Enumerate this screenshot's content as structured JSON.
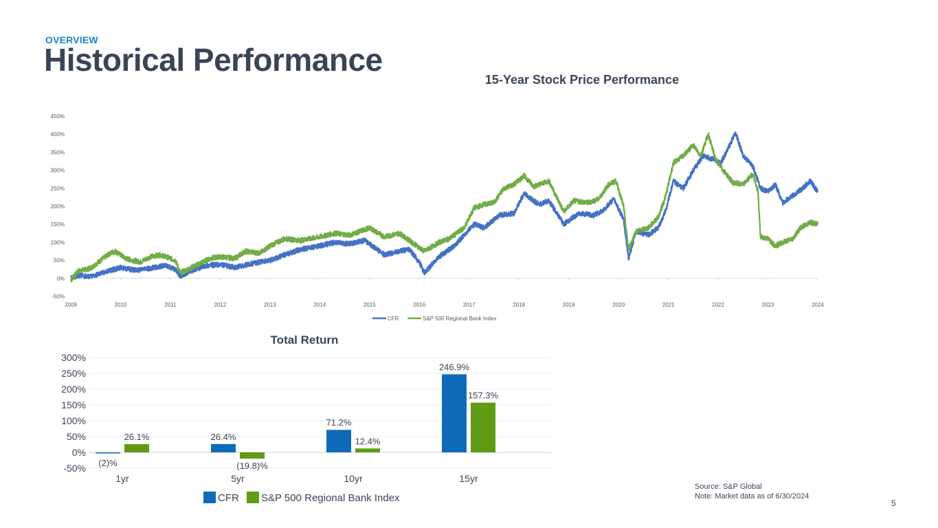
{
  "header": {
    "section": "OVERVIEW",
    "title": "Historical Performance"
  },
  "chart_data": [
    {
      "type": "line",
      "title": "15-Year Stock Price Performance",
      "xlabel": "",
      "ylabel": "",
      "ylim": [
        -50,
        450
      ],
      "y_ticks": [
        "-50%",
        "0%",
        "50%",
        "100%",
        "150%",
        "200%",
        "250%",
        "300%",
        "350%",
        "400%",
        "450%"
      ],
      "x_ticks": [
        "2009",
        "2010",
        "2011",
        "2012",
        "2013",
        "2014",
        "2015",
        "2016",
        "2017",
        "2018",
        "2019",
        "2020",
        "2021",
        "2022",
        "2023",
        "2024"
      ],
      "legend_position": "bottom",
      "series": [
        {
          "name": "CFR",
          "color": "#4472c4",
          "points": [
            [
              2009.0,
              0
            ],
            [
              2009.15,
              8
            ],
            [
              2009.4,
              5
            ],
            [
              2009.7,
              18
            ],
            [
              2010.0,
              30
            ],
            [
              2010.3,
              22
            ],
            [
              2010.6,
              28
            ],
            [
              2010.9,
              35
            ],
            [
              2011.1,
              25
            ],
            [
              2011.2,
              5
            ],
            [
              2011.4,
              20
            ],
            [
              2011.7,
              35
            ],
            [
              2012.0,
              38
            ],
            [
              2012.3,
              30
            ],
            [
              2012.6,
              40
            ],
            [
              2013.0,
              50
            ],
            [
              2013.3,
              65
            ],
            [
              2013.6,
              80
            ],
            [
              2014.0,
              90
            ],
            [
              2014.3,
              100
            ],
            [
              2014.6,
              95
            ],
            [
              2014.9,
              105
            ],
            [
              2015.1,
              85
            ],
            [
              2015.3,
              65
            ],
            [
              2015.6,
              75
            ],
            [
              2015.8,
              80
            ],
            [
              2016.0,
              45
            ],
            [
              2016.1,
              15
            ],
            [
              2016.4,
              60
            ],
            [
              2016.7,
              90
            ],
            [
              2016.9,
              120
            ],
            [
              2017.1,
              150
            ],
            [
              2017.3,
              140
            ],
            [
              2017.6,
              175
            ],
            [
              2017.9,
              180
            ],
            [
              2018.1,
              235
            ],
            [
              2018.4,
              205
            ],
            [
              2018.6,
              215
            ],
            [
              2018.9,
              150
            ],
            [
              2019.2,
              180
            ],
            [
              2019.5,
              175
            ],
            [
              2019.7,
              190
            ],
            [
              2019.9,
              220
            ],
            [
              2020.1,
              165
            ],
            [
              2020.2,
              55
            ],
            [
              2020.35,
              130
            ],
            [
              2020.6,
              120
            ],
            [
              2020.8,
              140
            ],
            [
              2020.95,
              190
            ],
            [
              2021.1,
              270
            ],
            [
              2021.3,
              250
            ],
            [
              2021.5,
              300
            ],
            [
              2021.7,
              340
            ],
            [
              2021.9,
              330
            ],
            [
              2022.05,
              320
            ],
            [
              2022.2,
              360
            ],
            [
              2022.35,
              405
            ],
            [
              2022.5,
              340
            ],
            [
              2022.7,
              310
            ],
            [
              2022.85,
              250
            ],
            [
              2023.0,
              240
            ],
            [
              2023.15,
              260
            ],
            [
              2023.3,
              210
            ],
            [
              2023.5,
              230
            ],
            [
              2023.7,
              250
            ],
            [
              2023.85,
              270
            ],
            [
              2024.0,
              240
            ]
          ]
        },
        {
          "name": "S&P 500 Regional Bank Index",
          "color": "#70ad47",
          "points": [
            [
              2009.0,
              -5
            ],
            [
              2009.15,
              20
            ],
            [
              2009.4,
              28
            ],
            [
              2009.6,
              50
            ],
            [
              2009.8,
              70
            ],
            [
              2009.9,
              75
            ],
            [
              2010.1,
              55
            ],
            [
              2010.4,
              45
            ],
            [
              2010.6,
              60
            ],
            [
              2010.8,
              65
            ],
            [
              2011.1,
              50
            ],
            [
              2011.2,
              15
            ],
            [
              2011.5,
              35
            ],
            [
              2011.8,
              55
            ],
            [
              2012.0,
              60
            ],
            [
              2012.3,
              55
            ],
            [
              2012.5,
              75
            ],
            [
              2012.8,
              70
            ],
            [
              2013.0,
              90
            ],
            [
              2013.3,
              110
            ],
            [
              2013.6,
              105
            ],
            [
              2014.0,
              115
            ],
            [
              2014.3,
              125
            ],
            [
              2014.6,
              120
            ],
            [
              2014.9,
              135
            ],
            [
              2015.0,
              140
            ],
            [
              2015.3,
              115
            ],
            [
              2015.6,
              125
            ],
            [
              2015.9,
              95
            ],
            [
              2016.1,
              75
            ],
            [
              2016.4,
              100
            ],
            [
              2016.6,
              110
            ],
            [
              2016.9,
              140
            ],
            [
              2017.1,
              195
            ],
            [
              2017.3,
              205
            ],
            [
              2017.5,
              210
            ],
            [
              2017.7,
              250
            ],
            [
              2017.9,
              260
            ],
            [
              2018.1,
              285
            ],
            [
              2018.3,
              255
            ],
            [
              2018.6,
              270
            ],
            [
              2018.9,
              185
            ],
            [
              2019.1,
              215
            ],
            [
              2019.4,
              210
            ],
            [
              2019.6,
              220
            ],
            [
              2019.8,
              260
            ],
            [
              2019.95,
              270
            ],
            [
              2020.1,
              200
            ],
            [
              2020.2,
              80
            ],
            [
              2020.35,
              130
            ],
            [
              2020.6,
              140
            ],
            [
              2020.8,
              170
            ],
            [
              2020.95,
              230
            ],
            [
              2021.1,
              320
            ],
            [
              2021.3,
              340
            ],
            [
              2021.5,
              370
            ],
            [
              2021.65,
              340
            ],
            [
              2021.8,
              400
            ],
            [
              2021.95,
              330
            ],
            [
              2022.1,
              300
            ],
            [
              2022.3,
              265
            ],
            [
              2022.5,
              260
            ],
            [
              2022.7,
              290
            ],
            [
              2022.8,
              240
            ],
            [
              2022.85,
              115
            ],
            [
              2023.0,
              110
            ],
            [
              2023.15,
              90
            ],
            [
              2023.3,
              100
            ],
            [
              2023.5,
              110
            ],
            [
              2023.65,
              140
            ],
            [
              2023.85,
              155
            ],
            [
              2024.0,
              150
            ]
          ]
        }
      ]
    },
    {
      "type": "bar",
      "title": "Total Return",
      "categories": [
        "1yr",
        "5yr",
        "10yr",
        "15yr"
      ],
      "ylim": [
        -50,
        300
      ],
      "y_ticks": [
        "-50%",
        "0%",
        "50%",
        "100%",
        "150%",
        "200%",
        "250%",
        "300%"
      ],
      "legend_position": "bottom",
      "series": [
        {
          "name": "CFR",
          "color": "#0f6bb9",
          "values": [
            -2,
            26.4,
            71.2,
            246.9
          ],
          "labels": [
            "(2)%",
            "26.4%",
            "71.2%",
            "246.9%"
          ]
        },
        {
          "name": "S&P 500 Regional Bank Index",
          "color": "#5f9b15",
          "values": [
            26.1,
            -19.8,
            12.4,
            157.3
          ],
          "labels": [
            "26.1%",
            "(19.8)%",
            "12.4%",
            "157.3%"
          ]
        }
      ]
    }
  ],
  "footer": {
    "source": "Source: S&P Global",
    "note": "Note: Market data as of 6/30/2024",
    "page_number": "5"
  }
}
